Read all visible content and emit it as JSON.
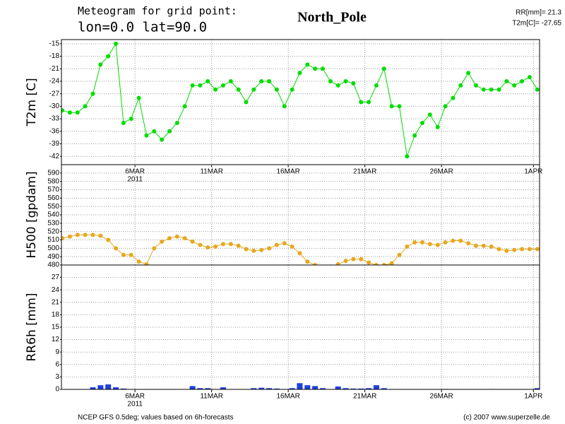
{
  "header": {
    "title": "Meteogram for grid point:",
    "location": "lon=0.0  lat=90.0",
    "place": "North_Pole",
    "rr_total": "RR[mm]= 21.3",
    "t2m_mean": "T2m[C]= -27.65"
  },
  "footer": {
    "source": "NCEP GFS 0.5deg; values based on 6h-forecasts",
    "credit": "(c) 2007 www.superzelle.de"
  },
  "chart_data": [
    {
      "type": "line",
      "ylabel": "T2m [C]",
      "color": "#00dd00",
      "markers": true,
      "grid": true,
      "xlim": [
        1.2,
        32.4
      ],
      "ylim": [
        -44,
        -14
      ],
      "yticks": [
        -15,
        -18,
        -21,
        -24,
        -27,
        -30,
        -33,
        -36,
        -39,
        -42
      ],
      "xticks": [
        {
          "value": 6,
          "label": "6MAR"
        },
        {
          "value": 11,
          "label": "11MAR"
        },
        {
          "value": 16,
          "label": "16MAR"
        },
        {
          "value": 21,
          "label": "21MAR"
        },
        {
          "value": 26,
          "label": "26MAR"
        },
        {
          "value": 32,
          "label": "1APR"
        }
      ],
      "x_year": "2011",
      "x": [
        1.25,
        1.75,
        2.25,
        2.75,
        3.25,
        3.75,
        4.25,
        4.75,
        5.25,
        5.75,
        6.25,
        6.75,
        7.25,
        7.75,
        8.25,
        8.75,
        9.25,
        9.75,
        10.25,
        10.75,
        11.25,
        11.75,
        12.25,
        12.75,
        13.25,
        13.75,
        14.25,
        14.75,
        15.25,
        15.75,
        16.25,
        16.75,
        17.25,
        17.75,
        18.25,
        18.75,
        19.25,
        19.75,
        20.25,
        20.75,
        21.25,
        21.75,
        22.25,
        22.75,
        23.25,
        23.75,
        24.25,
        24.75,
        25.25,
        25.75,
        26.25,
        26.75,
        27.25,
        27.75,
        28.25,
        28.75,
        29.25,
        29.75,
        30.25,
        30.75,
        31.25,
        31.75,
        32.25
      ],
      "values": [
        -31,
        -31.5,
        -31.5,
        -30,
        -27,
        -20,
        -18,
        -15,
        -34,
        -33,
        -28,
        -37,
        -36,
        -38,
        -36,
        -34,
        -30,
        -25,
        -25,
        -24,
        -26,
        -25,
        -24,
        -26,
        -29,
        -26,
        -24,
        -24,
        -26,
        -30,
        -26,
        -22,
        -20,
        -21,
        -21,
        -24,
        -25,
        -24,
        -24.5,
        -29,
        -29,
        -25,
        -21,
        -30,
        -30,
        -42,
        -37,
        -34,
        -32,
        -35,
        -30,
        -28,
        -25,
        -22,
        -25,
        -26,
        -26,
        -26,
        -24,
        -25,
        -24,
        -23,
        -26
      ]
    },
    {
      "type": "line",
      "ylabel": "H500 [gpdam]",
      "color": "#e6a820",
      "markers": true,
      "grid": true,
      "xlim": [
        1.2,
        32.4
      ],
      "ylim": [
        480,
        600
      ],
      "yticks": [
        480,
        490,
        500,
        510,
        520,
        530,
        540,
        550,
        560,
        570,
        580,
        590
      ],
      "x": [
        1.25,
        1.75,
        2.25,
        2.75,
        3.25,
        3.75,
        4.25,
        4.75,
        5.25,
        5.75,
        6.25,
        6.75,
        7.25,
        7.75,
        8.25,
        8.75,
        9.25,
        9.75,
        10.25,
        10.75,
        11.25,
        11.75,
        12.25,
        12.75,
        13.25,
        13.75,
        14.25,
        14.75,
        15.25,
        15.75,
        16.25,
        16.75,
        17.25,
        17.75,
        18.25,
        18.75,
        19.25,
        19.75,
        20.25,
        20.75,
        21.25,
        21.75,
        22.25,
        22.75,
        23.25,
        23.75,
        24.25,
        24.75,
        25.25,
        25.75,
        26.25,
        26.75,
        27.25,
        27.75,
        28.25,
        28.75,
        29.25,
        29.75,
        30.25,
        30.75,
        31.25,
        31.75,
        32.25
      ],
      "values": [
        512,
        514,
        516,
        516,
        516,
        515,
        510,
        500,
        492,
        492,
        484,
        481,
        500,
        508,
        512,
        514,
        512,
        508,
        504,
        501,
        502,
        505,
        505,
        503,
        499,
        497,
        498,
        500,
        504,
        506,
        502,
        494,
        484,
        480,
        478,
        478,
        481,
        485,
        487,
        487,
        483,
        480,
        480,
        482,
        492,
        502,
        507,
        507,
        505,
        504,
        507,
        509,
        509,
        506,
        503,
        503,
        502,
        499,
        497,
        498,
        499,
        499,
        499
      ]
    },
    {
      "type": "bar",
      "ylabel": "RR6h [mm]",
      "color": "#2040e0",
      "grid": true,
      "xlim": [
        1.2,
        32.4
      ],
      "ylim": [
        0,
        30
      ],
      "yticks": [
        0,
        3,
        6,
        9,
        12,
        15,
        18,
        21,
        24,
        27
      ],
      "xticks": [
        {
          "value": 6,
          "label": "6MAR"
        },
        {
          "value": 11,
          "label": "11MAR"
        },
        {
          "value": 16,
          "label": "16MAR"
        },
        {
          "value": 21,
          "label": "21MAR"
        },
        {
          "value": 26,
          "label": "26MAR"
        },
        {
          "value": 32,
          "label": "1APR"
        }
      ],
      "x_year": "2011",
      "x": [
        1.25,
        1.75,
        2.25,
        2.75,
        3.25,
        3.75,
        4.25,
        4.75,
        5.25,
        5.75,
        6.25,
        6.75,
        7.25,
        7.75,
        8.25,
        8.75,
        9.25,
        9.75,
        10.25,
        10.75,
        11.25,
        11.75,
        12.25,
        12.75,
        13.25,
        13.75,
        14.25,
        14.75,
        15.25,
        15.75,
        16.25,
        16.75,
        17.25,
        17.75,
        18.25,
        18.75,
        19.25,
        19.75,
        20.25,
        20.75,
        21.25,
        21.75,
        22.25,
        22.75,
        23.25,
        23.75,
        24.25,
        24.75,
        25.25,
        25.75,
        26.25,
        26.75,
        27.25,
        27.75,
        28.25,
        28.75,
        29.25,
        29.75,
        30.25,
        30.75,
        31.25,
        31.75,
        32.25
      ],
      "values": [
        0,
        0,
        0,
        0,
        0.5,
        1.0,
        1.2,
        0.5,
        0.2,
        0,
        0,
        0,
        0,
        0,
        0,
        0,
        0,
        0.8,
        0.3,
        0.3,
        0,
        0.5,
        0,
        0,
        0,
        0.3,
        0.4,
        0.3,
        0.2,
        0,
        0.3,
        1.5,
        1.0,
        0.8,
        0.3,
        0,
        0.7,
        0.3,
        0.2,
        0.2,
        0.3,
        1.0,
        0.3,
        0,
        0,
        0,
        0,
        0,
        0,
        0,
        0.1,
        0,
        0,
        0,
        0,
        0,
        0.1,
        0,
        0,
        0,
        0,
        0,
        0.3
      ]
    }
  ]
}
